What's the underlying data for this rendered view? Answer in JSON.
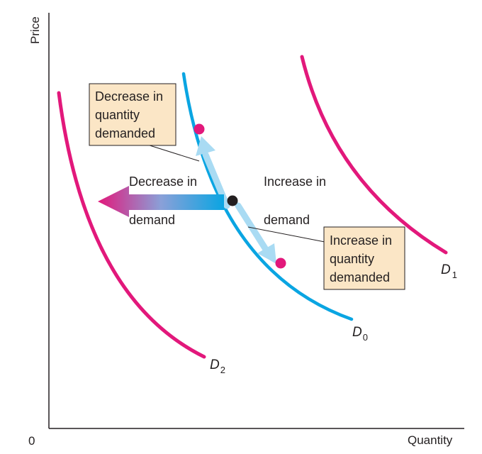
{
  "axes": {
    "y_label": "Price",
    "x_label": "Quantity",
    "origin_label": "0"
  },
  "curves": {
    "d0": {
      "letter": "D",
      "subscript": "0"
    },
    "d1": {
      "letter": "D",
      "subscript": "1"
    },
    "d2": {
      "letter": "D",
      "subscript": "2"
    }
  },
  "annotations": {
    "decrease_qd": [
      "Decrease in",
      "quantity",
      "demanded"
    ],
    "increase_qd": [
      "Increase in",
      "quantity",
      "demanded"
    ],
    "decrease_demand": [
      "Decrease in",
      "demand"
    ],
    "increase_demand": [
      "Increase in",
      "demand"
    ]
  },
  "colors": {
    "d0_curve": "#0aa5e2",
    "shift_curves": "#e2187b",
    "points_pink": "#e2187b",
    "point_black": "#231f20",
    "callout_fill": "#fbe6c6",
    "movement_arrows": "#a9dbf3"
  }
}
